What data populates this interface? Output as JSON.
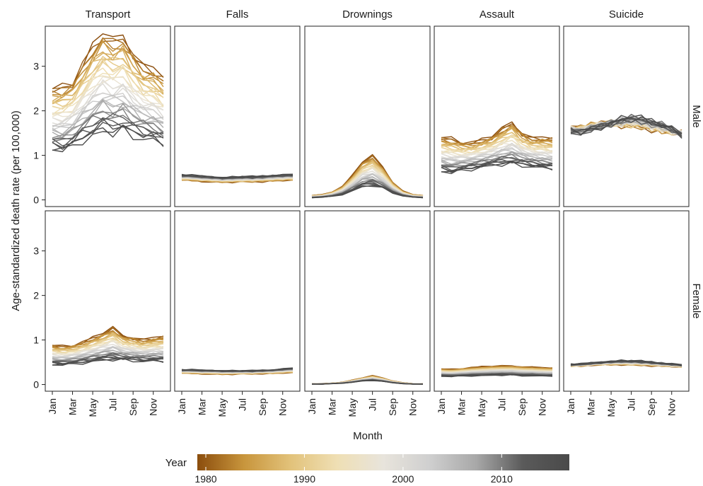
{
  "chart_data": {
    "type": "line",
    "facets": {
      "columns": [
        "Transport",
        "Falls",
        "Drownings",
        "Assault",
        "Suicide"
      ],
      "rows": [
        "Male",
        "Female"
      ]
    },
    "xlabel": "Month",
    "ylabel": "Age-standardized death rate (per 100,000)",
    "x_ticks": [
      "Jan",
      "Mar",
      "May",
      "Jul",
      "Sep",
      "Nov"
    ],
    "months": [
      "Jan",
      "Feb",
      "Mar",
      "Apr",
      "May",
      "Jun",
      "Jul",
      "Aug",
      "Sep",
      "Oct",
      "Nov",
      "Dec"
    ],
    "y_ticks": [
      0,
      1,
      2,
      3
    ],
    "ylim": [
      -0.15,
      3.9
    ],
    "year_range": [
      1980,
      2016
    ],
    "legend": {
      "title": "Year",
      "ticks": [
        1980,
        1990,
        2000,
        2010
      ],
      "placement": "bottom",
      "colors": [
        "#8b4d0d",
        "#c8953c",
        "#e2c27a",
        "#efdfb4",
        "#e8e4dc",
        "#cfcfcf",
        "#a8a8a8",
        "#5a5a5a",
        "#4a4a4a"
      ]
    },
    "panels": [
      {
        "sex": "Male",
        "cause": "Transport",
        "early": [
          2.5,
          2.55,
          2.65,
          3.05,
          3.45,
          3.75,
          3.6,
          3.7,
          3.3,
          3.0,
          2.95,
          2.75
        ],
        "late": [
          1.15,
          1.1,
          1.2,
          1.35,
          1.45,
          1.55,
          1.5,
          1.55,
          1.45,
          1.4,
          1.35,
          1.25
        ]
      },
      {
        "sex": "Male",
        "cause": "Falls",
        "early": [
          0.45,
          0.44,
          0.42,
          0.41,
          0.4,
          0.4,
          0.41,
          0.41,
          0.42,
          0.43,
          0.44,
          0.45
        ],
        "late": [
          0.56,
          0.55,
          0.53,
          0.52,
          0.5,
          0.51,
          0.52,
          0.52,
          0.53,
          0.55,
          0.56,
          0.57
        ]
      },
      {
        "sex": "Male",
        "cause": "Drownings",
        "early": [
          0.1,
          0.12,
          0.18,
          0.3,
          0.55,
          0.85,
          1.0,
          0.75,
          0.4,
          0.2,
          0.12,
          0.1
        ],
        "late": [
          0.05,
          0.06,
          0.08,
          0.12,
          0.2,
          0.3,
          0.32,
          0.26,
          0.16,
          0.09,
          0.06,
          0.05
        ]
      },
      {
        "sex": "Male",
        "cause": "Assault",
        "early": [
          1.4,
          1.38,
          1.3,
          1.28,
          1.35,
          1.42,
          1.6,
          1.75,
          1.5,
          1.38,
          1.4,
          1.38
        ],
        "late": [
          0.65,
          0.6,
          0.66,
          0.7,
          0.74,
          0.78,
          0.8,
          0.8,
          0.78,
          0.76,
          0.72,
          0.7
        ]
      },
      {
        "sex": "Male",
        "cause": "Suicide",
        "early": [
          1.6,
          1.62,
          1.68,
          1.7,
          1.72,
          1.68,
          1.66,
          1.65,
          1.6,
          1.55,
          1.52,
          1.5
        ],
        "late": [
          1.55,
          1.5,
          1.58,
          1.65,
          1.72,
          1.8,
          1.85,
          1.82,
          1.75,
          1.7,
          1.6,
          1.45
        ]
      },
      {
        "sex": "Female",
        "cause": "Transport",
        "early": [
          0.88,
          0.86,
          0.88,
          0.95,
          1.05,
          1.15,
          1.28,
          1.1,
          1.05,
          1.0,
          1.05,
          1.08
        ],
        "late": [
          0.45,
          0.44,
          0.46,
          0.49,
          0.52,
          0.55,
          0.56,
          0.55,
          0.54,
          0.53,
          0.53,
          0.52
        ]
      },
      {
        "sex": "Female",
        "cause": "Falls",
        "early": [
          0.26,
          0.25,
          0.24,
          0.24,
          0.23,
          0.23,
          0.24,
          0.24,
          0.25,
          0.25,
          0.26,
          0.27
        ],
        "late": [
          0.33,
          0.33,
          0.32,
          0.32,
          0.31,
          0.31,
          0.31,
          0.31,
          0.32,
          0.33,
          0.35,
          0.37
        ]
      },
      {
        "sex": "Female",
        "cause": "Drownings",
        "early": [
          0.02,
          0.02,
          0.03,
          0.05,
          0.1,
          0.15,
          0.2,
          0.15,
          0.08,
          0.04,
          0.02,
          0.02
        ],
        "late": [
          0.01,
          0.01,
          0.02,
          0.03,
          0.05,
          0.08,
          0.09,
          0.07,
          0.04,
          0.02,
          0.01,
          0.01
        ]
      },
      {
        "sex": "Female",
        "cause": "Assault",
        "early": [
          0.35,
          0.34,
          0.36,
          0.38,
          0.4,
          0.41,
          0.42,
          0.42,
          0.4,
          0.39,
          0.38,
          0.37
        ],
        "late": [
          0.19,
          0.18,
          0.19,
          0.2,
          0.2,
          0.21,
          0.21,
          0.21,
          0.2,
          0.2,
          0.19,
          0.19
        ]
      },
      {
        "sex": "Female",
        "cause": "Suicide",
        "early": [
          0.42,
          0.42,
          0.44,
          0.45,
          0.45,
          0.45,
          0.44,
          0.44,
          0.43,
          0.42,
          0.41,
          0.4
        ],
        "late": [
          0.45,
          0.46,
          0.48,
          0.5,
          0.52,
          0.53,
          0.53,
          0.52,
          0.5,
          0.48,
          0.46,
          0.44
        ]
      }
    ]
  }
}
